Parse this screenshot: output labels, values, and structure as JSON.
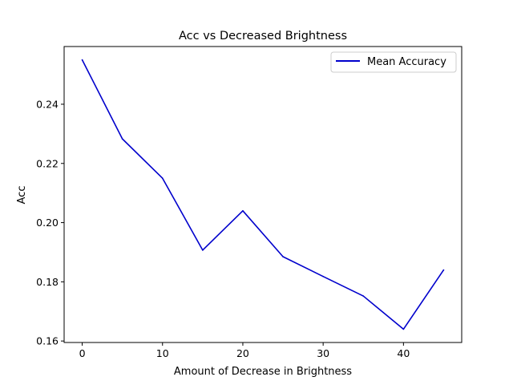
{
  "chart_data": {
    "type": "line",
    "title": "Acc vs Decreased Brightness",
    "xlabel": "Amount of Decrease in Brightness",
    "ylabel": "Acc",
    "xlim": [
      -2.25,
      47.25
    ],
    "ylim": [
      0.1595,
      0.2595
    ],
    "x_ticks": [
      0,
      10,
      20,
      30,
      40
    ],
    "y_ticks": [
      0.16,
      0.18,
      0.2,
      0.22,
      0.24
    ],
    "y_tick_labels": [
      "0.16",
      "0.18",
      "0.20",
      "0.22",
      "0.24"
    ],
    "grid": false,
    "legend_position": "upper-right",
    "series": [
      {
        "name": "Mean Accuracy",
        "color": "#0000cc",
        "x": [
          0,
          5,
          10,
          15,
          20,
          25,
          30,
          35,
          40,
          45
        ],
        "y": [
          0.255,
          0.2283,
          0.215,
          0.1907,
          0.204,
          0.1885,
          0.1818,
          0.1752,
          0.164,
          0.184
        ]
      }
    ]
  }
}
